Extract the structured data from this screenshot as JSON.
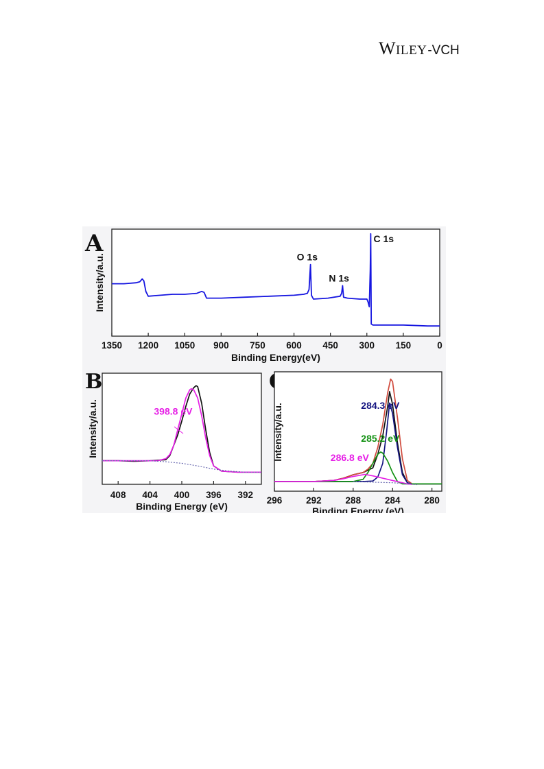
{
  "header": {
    "logo_text": "WILEY-VCH"
  },
  "panels": {
    "A": {
      "letter": "A"
    },
    "B": {
      "letter": "B"
    },
    "C": {
      "letter": "C"
    }
  },
  "colors": {
    "survey": "#1515e0",
    "raw": "#111111",
    "fit_envelope": "#d04a3c",
    "magenta": "#e61ee6",
    "navy": "#141480",
    "green": "#139113",
    "baseline": "#6a6ab0"
  },
  "chart_data": [
    {
      "panel": "A",
      "type": "line",
      "xlabel": "Binding Energy(eV)",
      "ylabel": "Intensity/a.u.",
      "xlim": [
        1350,
        0
      ],
      "ylim": [
        0,
        100
      ],
      "x_ticks": [
        "1350",
        "1200",
        "1050",
        "900",
        "750",
        "600",
        "450",
        "300",
        "150",
        "0"
      ],
      "annotations": [
        {
          "text": "O 1s",
          "x": 532,
          "y": 66
        },
        {
          "text": "N 1s",
          "x": 400,
          "y": 44
        },
        {
          "text": "C 1s",
          "x": 284,
          "y": 98
        }
      ],
      "series": [
        {
          "color": "#1515e0",
          "points": [
            [
              1350,
              46
            ],
            [
              1300,
              46
            ],
            [
              1250,
              47
            ],
            [
              1235,
              48
            ],
            [
              1225,
              51
            ],
            [
              1218,
              49
            ],
            [
              1210,
              38
            ],
            [
              1200,
              33
            ],
            [
              1150,
              34
            ],
            [
              1100,
              35
            ],
            [
              1050,
              35
            ],
            [
              1000,
              36
            ],
            [
              980,
              38
            ],
            [
              970,
              37
            ],
            [
              960,
              31
            ],
            [
              900,
              31
            ],
            [
              800,
              32
            ],
            [
              700,
              33
            ],
            [
              600,
              34
            ],
            [
              560,
              35
            ],
            [
              545,
              36
            ],
            [
              538,
              40
            ],
            [
              532,
              66
            ],
            [
              528,
              34
            ],
            [
              520,
              30
            ],
            [
              460,
              31
            ],
            [
              410,
              33
            ],
            [
              404,
              36
            ],
            [
              400,
              44
            ],
            [
              396,
              32
            ],
            [
              380,
              31
            ],
            [
              330,
              30
            ],
            [
              300,
              30
            ],
            [
              295,
              27
            ],
            [
              290,
              22
            ],
            [
              286,
              60
            ],
            [
              284,
              98
            ],
            [
              282,
              4
            ],
            [
              275,
              3
            ],
            [
              150,
              3
            ],
            [
              50,
              2
            ],
            [
              0,
              2
            ]
          ]
        }
      ]
    },
    {
      "panel": "B",
      "type": "line",
      "xlabel": "Binding Energy (eV)",
      "ylabel": "Intensity/a.u.",
      "xlim": [
        410,
        390
      ],
      "ylim": [
        0,
        100
      ],
      "x_ticks": [
        "408",
        "404",
        "400",
        "396",
        "392"
      ],
      "annotations": [
        {
          "text": "398.8 eV",
          "x": 403.5,
          "y": 64,
          "color": "#e61ee6"
        }
      ],
      "series": [
        {
          "color": "#111111",
          "points": [
            [
              410,
              20
            ],
            [
              408,
              20
            ],
            [
              406,
              19.5
            ],
            [
              404,
              20
            ],
            [
              402,
              21
            ],
            [
              401.5,
              25
            ],
            [
              401,
              35
            ],
            [
              400.5,
              45
            ],
            [
              400,
              58
            ],
            [
              399.5,
              72
            ],
            [
              399,
              84
            ],
            [
              398.5,
              90
            ],
            [
              398.2,
              92
            ],
            [
              398,
              91
            ],
            [
              397.5,
              75
            ],
            [
              397,
              50
            ],
            [
              396.5,
              28
            ],
            [
              396,
              15
            ],
            [
              395,
              10
            ],
            [
              393,
              9
            ],
            [
              391,
              9
            ],
            [
              390,
              9
            ]
          ]
        },
        {
          "color": "#e61ee6",
          "points": [
            [
              410,
              20
            ],
            [
              404,
              20
            ],
            [
              403,
              20
            ],
            [
              402,
              22
            ],
            [
              401.5,
              26
            ],
            [
              401,
              35
            ],
            [
              400.5,
              50
            ],
            [
              400,
              65
            ],
            [
              399.5,
              80
            ],
            [
              399,
              88
            ],
            [
              398.8,
              89
            ],
            [
              398.5,
              88
            ],
            [
              398,
              80
            ],
            [
              397.5,
              63
            ],
            [
              397,
              42
            ],
            [
              396.5,
              25
            ],
            [
              396,
              15
            ],
            [
              395,
              10
            ],
            [
              393,
              9
            ],
            [
              390,
              9
            ]
          ]
        },
        {
          "color": "#6a6ab0",
          "dashed": true,
          "points": [
            [
              410,
              20
            ],
            [
              404,
              20
            ],
            [
              402,
              19
            ],
            [
              400,
              17.5
            ],
            [
              398,
              15
            ],
            [
              396,
              12
            ],
            [
              394,
              10
            ],
            [
              392,
              9
            ],
            [
              390,
              9
            ]
          ]
        }
      ]
    },
    {
      "panel": "C",
      "type": "line",
      "xlabel": "Binding Energy (eV)",
      "ylabel": "Intensity/a.u.",
      "xlim": [
        296,
        279
      ],
      "ylim": [
        0,
        100
      ],
      "x_ticks": [
        "296",
        "292",
        "288",
        "284",
        "280"
      ],
      "annotations": [
        {
          "text": "284.3 eV",
          "x": 287.2,
          "y": 70,
          "color": "#141480"
        },
        {
          "text": "285.2 eV",
          "x": 287.2,
          "y": 41,
          "color": "#139113"
        },
        {
          "text": "286.8 eV",
          "x": 290.3,
          "y": 24,
          "color": "#e61ee6"
        }
      ],
      "series": [
        {
          "color": "#111111",
          "points": [
            [
              296,
              6
            ],
            [
              292,
              6
            ],
            [
              290,
              7
            ],
            [
              289,
              9
            ],
            [
              288,
              12
            ],
            [
              287,
              14
            ],
            [
              286,
              18
            ],
            [
              285.5,
              30
            ],
            [
              285,
              46
            ],
            [
              284.5,
              72
            ],
            [
              284.3,
              85
            ],
            [
              284,
              74
            ],
            [
              283.5,
              40
            ],
            [
              283,
              14
            ],
            [
              282.5,
              5
            ]
          ]
        },
        {
          "color": "#d04a3c",
          "points": [
            [
              296,
              6
            ],
            [
              292,
              6
            ],
            [
              290,
              7
            ],
            [
              289,
              9
            ],
            [
              288,
              12
            ],
            [
              287,
              14
            ],
            [
              286.5,
              17
            ],
            [
              286,
              22
            ],
            [
              285.5,
              36
            ],
            [
              285,
              56
            ],
            [
              284.5,
              84
            ],
            [
              284.2,
              96
            ],
            [
              284,
              94
            ],
            [
              283.5,
              62
            ],
            [
              283,
              26
            ],
            [
              282.5,
              7
            ],
            [
              282,
              4
            ],
            [
              281,
              4
            ],
            [
              279,
              4
            ]
          ]
        },
        {
          "color": "#141480",
          "points": [
            [
              296,
              6
            ],
            [
              287,
              6
            ],
            [
              286,
              6.5
            ],
            [
              285.5,
              10
            ],
            [
              285,
              22
            ],
            [
              284.6,
              50
            ],
            [
              284.3,
              75
            ],
            [
              284,
              66
            ],
            [
              283.5,
              36
            ],
            [
              283,
              12
            ],
            [
              282.5,
              5
            ],
            [
              282,
              4
            ],
            [
              279,
              4
            ]
          ]
        },
        {
          "color": "#139113",
          "points": [
            [
              296,
              6
            ],
            [
              288,
              6
            ],
            [
              287,
              8
            ],
            [
              286.5,
              14
            ],
            [
              286,
              22
            ],
            [
              285.5,
              30
            ],
            [
              285.2,
              32
            ],
            [
              285,
              31
            ],
            [
              284.5,
              24
            ],
            [
              284,
              14
            ],
            [
              283.5,
              6
            ],
            [
              283,
              4
            ],
            [
              279,
              4
            ]
          ]
        },
        {
          "color": "#e61ee6",
          "points": [
            [
              296,
              6
            ],
            [
              292,
              6
            ],
            [
              290,
              7
            ],
            [
              289,
              8.5
            ],
            [
              288,
              10.5
            ],
            [
              287,
              12
            ],
            [
              286.8,
              12.3
            ],
            [
              286,
              11
            ],
            [
              285,
              9
            ],
            [
              284,
              7
            ],
            [
              283,
              5
            ],
            [
              282.5,
              4
            ],
            [
              282,
              3.6
            ]
          ]
        },
        {
          "color": "#6a6ab0",
          "dashed": true,
          "points": [
            [
              288,
              6
            ],
            [
              286,
              5.5
            ],
            [
              284,
              5
            ],
            [
              283,
              4.4
            ],
            [
              282,
              3.6
            ],
            [
              281.5,
              3.3
            ]
          ]
        }
      ]
    }
  ]
}
